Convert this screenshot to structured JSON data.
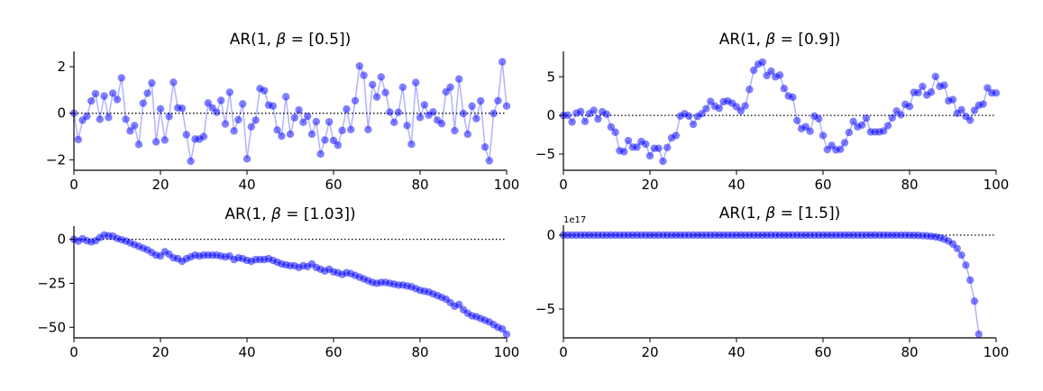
{
  "colors": {
    "marker": "#0000ff",
    "line": "#0000ff",
    "zero_line": "#000000"
  },
  "chart_data": [
    {
      "type": "line",
      "title_prefix": "AR(1, ",
      "title_symbol": "β",
      "title_suffix": " = [0.5])",
      "xlim": [
        0,
        100
      ],
      "ylim": [
        -2.45,
        2.66
      ],
      "xticks": [
        0,
        20,
        40,
        60,
        80,
        100
      ],
      "yticks": [
        -2,
        0,
        2
      ],
      "xtick_labels": [
        "0",
        "20",
        "40",
        "60",
        "80",
        "100"
      ],
      "ytick_labels": [
        "−2",
        "0",
        "2"
      ],
      "offset_label": "",
      "values": [
        0,
        -1.13,
        -0.3,
        -0.13,
        0.53,
        0.84,
        -0.26,
        0.74,
        -0.18,
        0.86,
        0.59,
        1.52,
        -0.26,
        -0.76,
        -0.53,
        -1.34,
        0.43,
        0.86,
        1.3,
        -1.23,
        0.19,
        -1.15,
        -0.14,
        1.33,
        0.23,
        0.21,
        -0.92,
        -2.06,
        -1.11,
        -1.11,
        -1.0,
        0.44,
        0.23,
        0.04,
        0.55,
        -0.46,
        0.9,
        -0.76,
        -0.28,
        0.4,
        -1.96,
        -0.58,
        -0.3,
        1.06,
        0.97,
        0.35,
        0.31,
        -0.72,
        -0.98,
        0.71,
        -0.9,
        -0.19,
        0.14,
        -0.39,
        -0.13,
        -0.9,
        -0.36,
        -1.75,
        -1.15,
        -0.37,
        -1.17,
        -1.37,
        -0.74,
        0.18,
        -0.7,
        0.54,
        2.03,
        1.63,
        -0.7,
        1.23,
        0.7,
        1.56,
        0.89,
        0.05,
        -0.39,
        0.04,
        1.12,
        -0.53,
        -1.33,
        1.32,
        -0.18,
        0.36,
        -0.08,
        0.06,
        -0.3,
        -0.45,
        0.92,
        1.12,
        -0.75,
        1.47,
        -0.01,
        -0.9,
        0.31,
        -0.23,
        0.53,
        -1.45,
        -2.04,
        -0.01,
        0.54,
        2.21,
        0.31
      ]
    },
    {
      "type": "line",
      "title_prefix": "AR(1, ",
      "title_symbol": "β",
      "title_suffix": " = [0.9])",
      "xlim": [
        0,
        100
      ],
      "ylim": [
        -7.1,
        8.3
      ],
      "xticks": [
        0,
        20,
        40,
        60,
        80,
        100
      ],
      "yticks": [
        -5,
        0,
        5
      ],
      "xtick_labels": [
        "0",
        "20",
        "40",
        "60",
        "80",
        "100"
      ],
      "ytick_labels": [
        "−5",
        "0",
        "5"
      ],
      "offset_label": "",
      "values": [
        0,
        0.04,
        -0.85,
        0.3,
        0.5,
        -0.78,
        0.23,
        0.66,
        -0.47,
        0.47,
        0.16,
        -1.5,
        -2.17,
        -4.57,
        -4.69,
        -3.26,
        -4.1,
        -4.1,
        -3.37,
        -3.72,
        -5.23,
        -4.26,
        -4.26,
        -5.93,
        -4.15,
        -2.91,
        -2.6,
        -0.08,
        0.23,
        -0.08,
        -1.16,
        -0.12,
        0.23,
        0.89,
        1.82,
        1.2,
        0.93,
        1.78,
        1.86,
        1.59,
        1.12,
        0.58,
        1.24,
        3.37,
        5.85,
        6.63,
        6.9,
        5.16,
        5.74,
        5.0,
        5.23,
        3.49,
        2.52,
        2.36,
        -0.66,
        -1.71,
        -1.47,
        -2.05,
        -0.08,
        -0.43,
        -2.6,
        -4.42,
        -3.88,
        -4.46,
        -4.38,
        -3.53,
        -2.21,
        -0.78,
        -1.47,
        -1.24,
        -0.35,
        -2.13,
        -2.13,
        -2.13,
        -2.02,
        -1.32,
        -0.31,
        0.58,
        0.08,
        1.43,
        1.16,
        2.98,
        2.95,
        3.76,
        2.64,
        3.02,
        5.04,
        3.76,
        3.91,
        1.9,
        2.05,
        0.27,
        0.74,
        -0.12,
        -0.62,
        0.66,
        1.32,
        1.47,
        3.57,
        2.91,
        2.91
      ]
    },
    {
      "type": "line",
      "title_prefix": "AR(1, ",
      "title_symbol": "β",
      "title_suffix": " = [1.03])",
      "xlim": [
        0,
        100
      ],
      "ylim": [
        -56,
        7.5
      ],
      "xticks": [
        0,
        20,
        40,
        60,
        80,
        100
      ],
      "yticks": [
        -50,
        -25,
        0
      ],
      "xtick_labels": [
        "0",
        "20",
        "40",
        "60",
        "80",
        "100"
      ],
      "ytick_labels": [
        "−50",
        "−25",
        "0"
      ],
      "offset_label": "",
      "values": [
        0,
        -1,
        0.3,
        -0.8,
        -1.5,
        -0.8,
        1,
        2.5,
        2,
        1.8,
        0.5,
        -0.2,
        -1,
        -2,
        -3,
        -4,
        -5,
        -6,
        -7.5,
        -9,
        -9.5,
        -7,
        -8.5,
        -10.5,
        -11,
        -12.5,
        -11,
        -10,
        -9,
        -9.5,
        -9,
        -9,
        -9,
        -9,
        -9.5,
        -10,
        -9.5,
        -11.5,
        -10.5,
        -11,
        -12,
        -12.5,
        -11.5,
        -11.5,
        -11.5,
        -11,
        -12,
        -13,
        -14,
        -14.5,
        -15,
        -15,
        -16,
        -15,
        -15.5,
        -14,
        -16,
        -17,
        -18,
        -17,
        -18.5,
        -19,
        -20,
        -19,
        -19.5,
        -20.5,
        -21.5,
        -22.5,
        -23.5,
        -24.5,
        -25,
        -24.5,
        -24.5,
        -25,
        -25.5,
        -26,
        -26,
        -26.5,
        -27,
        -28,
        -29,
        -29.5,
        -30,
        -31,
        -32,
        -33,
        -34,
        -36,
        -38,
        -37,
        -40,
        -42,
        -43.5,
        -44,
        -45,
        -46,
        -47,
        -48.5,
        -50,
        -51,
        -54
      ]
    },
    {
      "type": "line",
      "title_prefix": "AR(1, ",
      "title_symbol": "β",
      "title_suffix": " = [1.5])",
      "xlim": [
        0,
        100
      ],
      "ylim": [
        -6.95,
        0.67
      ],
      "xticks": [
        0,
        20,
        40,
        60,
        80,
        100
      ],
      "yticks": [
        -5,
        0
      ],
      "xtick_labels": [
        "0",
        "20",
        "40",
        "60",
        "80",
        "100"
      ],
      "ytick_labels": [
        "−5",
        "0"
      ],
      "offset_label": "1e17",
      "values": [
        0,
        0,
        0,
        0,
        0,
        0,
        0,
        0,
        0,
        0,
        0,
        0,
        0,
        0,
        0,
        0,
        0,
        0,
        0,
        0,
        0,
        0,
        0,
        0,
        0,
        0,
        0,
        0,
        0,
        0,
        0,
        0,
        0,
        0,
        0,
        0,
        0,
        0,
        0,
        0,
        0,
        0,
        0,
        0,
        0,
        0,
        0,
        0,
        0,
        0,
        0,
        0,
        0,
        0,
        0,
        0,
        0,
        0,
        0,
        0,
        0,
        0,
        0,
        0,
        0,
        0,
        0,
        0,
        0,
        0,
        0,
        0,
        0,
        -0.001,
        -0.001,
        -0.002,
        -0.002,
        -0.003,
        -0.005,
        -0.007,
        -0.01,
        -0.016,
        -0.023,
        -0.035,
        -0.053,
        -0.079,
        -0.119,
        -0.178,
        -0.267,
        -0.401,
        -0.601,
        -0.902,
        -1.353,
        -2.03,
        -3.04,
        -4.47,
        -6.7
      ]
    }
  ]
}
